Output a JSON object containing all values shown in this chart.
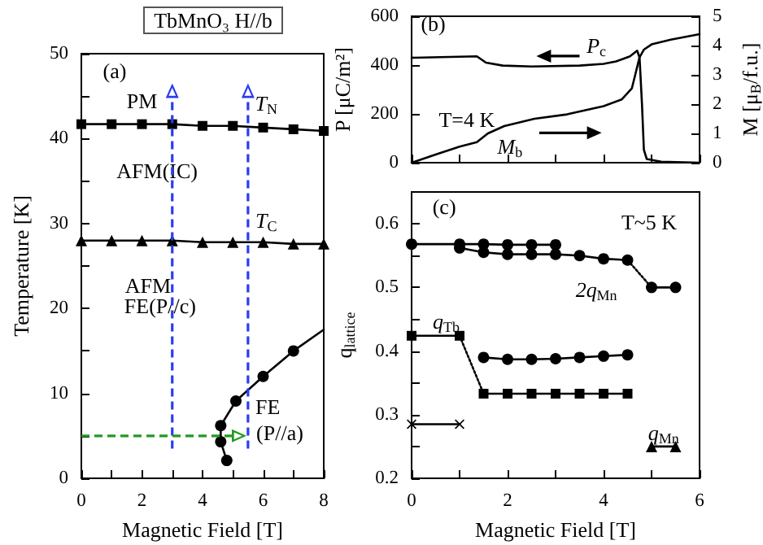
{
  "chart_data": [
    {
      "type": "line",
      "title": "TbMnO₃ H//b",
      "xlabel": "Magnetic Field [T]",
      "ylabel": "Temperature [K]",
      "annotations": [
        "(a)",
        "PM",
        "AFM(IC)",
        "AFM",
        "FE(P//c)",
        "FE",
        "(P//a)"
      ],
      "xlim": [
        0,
        8
      ],
      "xticks": [
        0,
        {
          "value": 1,
          "label": null
        },
        2,
        {
          "value": 3,
          "label": null
        },
        4,
        {
          "value": 5,
          "label": null
        },
        6,
        {
          "value": 7,
          "label": null
        },
        8
      ],
      "ylim": [
        0,
        50
      ],
      "yticks": [
        0,
        {
          "value": 5,
          "label": null
        },
        10,
        {
          "value": 15,
          "label": null
        },
        20,
        {
          "value": 25,
          "label": null
        },
        30,
        {
          "value": 35,
          "label": null
        },
        40,
        {
          "value": 45,
          "label": null
        },
        50
      ],
      "series": [
        {
          "name": "T$_{N}$",
          "color": "#000000",
          "marker": "square",
          "x": [
            0,
            1,
            2,
            3,
            4,
            5,
            6,
            7,
            8
          ],
          "values": [
            41.7,
            41.7,
            41.7,
            41.7,
            41.5,
            41.5,
            41.3,
            41.1,
            40.9
          ]
        },
        {
          "name": "T$_{C}$",
          "color": "#000000",
          "marker": "triangle",
          "x": [
            0,
            1,
            2,
            3,
            4,
            5,
            6,
            7,
            8
          ],
          "values": [
            28,
            28,
            28,
            28,
            27.8,
            27.8,
            27.8,
            27.6,
            27.6
          ]
        },
        {
          "color": "#000000",
          "marker": "circle",
          "x": [
            4.8,
            4.6,
            4.6,
            5.1,
            6,
            7
          ],
          "values": [
            2.1,
            4.3,
            6.2,
            9.1,
            12,
            15
          ]
        },
        {
          "color": "#000000",
          "x": [
            7,
            8
          ],
          "values": [
            15,
            17.5
          ]
        }
      ]
    },
    {
      "type": "line",
      "ylabel": "P [μC/m²]",
      "y2label": "M [μ$_{B}$/f.u.]",
      "annotations": [
        "(b)",
        "T=4 K"
      ],
      "xlim": [
        0,
        6
      ],
      "xticks": [
        {
          "value": 0,
          "label": null
        },
        {
          "value": 1,
          "label": null
        },
        {
          "value": 2,
          "label": null
        },
        {
          "value": 3,
          "label": null
        },
        {
          "value": 4,
          "label": null
        },
        {
          "value": 5,
          "label": null
        },
        {
          "value": 6,
          "label": null
        }
      ],
      "ylim": [
        0,
        600
      ],
      "yticks": [
        0,
        200,
        400,
        600
      ],
      "y2lim": [
        0,
        5
      ],
      "y2ticks": [
        0,
        1,
        2,
        3,
        4,
        5
      ],
      "tick_labels": "y",
      "series": [
        {
          "name": "P$_{c}$",
          "color": "#000000",
          "x": [
            0,
            1.36,
            1.55,
            1.9,
            2.5,
            3.5,
            4.0,
            4.26,
            4.55,
            4.7,
            4.75,
            4.8,
            4.84,
            4.9,
            5.2,
            6
          ],
          "values": [
            430,
            436,
            410,
            398,
            394,
            398,
            405,
            415,
            436,
            459,
            431,
            242,
            53,
            15,
            4,
            0
          ]
        },
        {
          "name": "M$_{b}$",
          "color": "#000000",
          "axis": "y2",
          "x": [
            0,
            0.5,
            1,
            1.36,
            1.59,
            1.93,
            2.56,
            3.24,
            4.0,
            4.38,
            4.59,
            4.67,
            4.75,
            4.84,
            5.0,
            5.4,
            6
          ],
          "values": [
            0,
            0.28,
            0.55,
            0.7,
            1.0,
            1.25,
            1.5,
            1.65,
            1.93,
            2.16,
            2.54,
            3.07,
            3.6,
            3.86,
            4.04,
            4.2,
            4.39
          ]
        }
      ]
    },
    {
      "type": "line",
      "xlabel": "Magnetic Field [T]",
      "ylabel": "q$_{lattice}$",
      "annotations": [
        "(c)",
        "T~5 K"
      ],
      "xlim": [
        0,
        6
      ],
      "xticks": [
        0,
        {
          "value": 1,
          "label": null
        },
        2,
        {
          "value": 3,
          "label": null
        },
        4,
        {
          "value": 5,
          "label": null
        },
        6
      ],
      "ylim": [
        0.2,
        0.65
      ],
      "yticks": [
        0.2,
        {
          "value": 0.25,
          "label": null
        },
        0.3,
        {
          "value": 0.35,
          "label": null
        },
        0.4,
        {
          "value": 0.45,
          "label": null
        },
        0.5,
        {
          "value": 0.55,
          "label": null
        },
        0.6
      ],
      "series": [
        {
          "color": "#000000",
          "marker": "circle",
          "x": [
            0,
            1,
            1.5,
            2,
            2.5,
            3
          ],
          "values": [
            0.568,
            0.568,
            0.568,
            0.567,
            0.567,
            0.567
          ]
        },
        {
          "name": "2q$_{Mn}$",
          "color": "#000000",
          "marker": "circle",
          "x": [
            1,
            1.5,
            2,
            2.5,
            3,
            3.5,
            4,
            4.5
          ],
          "values": [
            0.562,
            0.555,
            0.552,
            0.552,
            0.552,
            0.55,
            0.545,
            0.543
          ]
        },
        {
          "color": "#000000",
          "line_style": "dotted",
          "x": [
            4.5,
            5
          ],
          "values": [
            0.543,
            0.5
          ]
        },
        {
          "color": "#000000",
          "marker": "circle",
          "x": [
            5,
            5.5
          ],
          "values": [
            0.5,
            0.5
          ]
        },
        {
          "name": "q$_{Tb}$",
          "color": "#000000",
          "marker": "square",
          "x": [
            0,
            1
          ],
          "values": [
            0.424,
            0.424
          ]
        },
        {
          "color": "#000000",
          "line_style": "dotted",
          "x": [
            1,
            1.5
          ],
          "values": [
            0.424,
            0.333
          ]
        },
        {
          "color": "#000000",
          "marker": "square",
          "x": [
            1.5,
            2,
            2.5,
            3,
            3.5,
            4,
            4.5
          ],
          "values": [
            0.333,
            0.333,
            0.333,
            0.333,
            0.333,
            0.333,
            0.333
          ]
        },
        {
          "color": "#000000",
          "marker": "circle",
          "x": [
            1.5,
            2,
            2.5,
            3,
            3.5,
            4,
            4.5
          ],
          "values": [
            0.39,
            0.387,
            0.387,
            0.388,
            0.39,
            0.392,
            0.394
          ]
        },
        {
          "color": "#000000",
          "marker": "cross",
          "x": [
            0,
            1
          ],
          "values": [
            0.285,
            0.285
          ]
        },
        {
          "name": "q$_{Mn}$",
          "color": "#000000",
          "marker": "triangle",
          "x": [
            5,
            5.5
          ],
          "values": [
            0.25,
            0.25
          ]
        }
      ]
    }
  ]
}
